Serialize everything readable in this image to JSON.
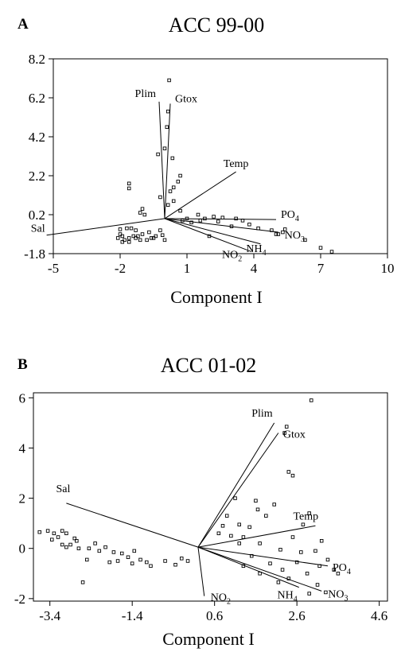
{
  "chart_data": [
    {
      "type": "scatter",
      "subtype": "biplot",
      "panel_label": "A",
      "title": "ACC 99-00",
      "xlabel": "Component I",
      "ylabel": "",
      "xlim": [
        -5,
        10
      ],
      "ylim": [
        -1.8,
        8.2
      ],
      "xticks": [
        "-5",
        "-2",
        "1",
        "4",
        "7",
        "10"
      ],
      "yticks": [
        "-1.8",
        "0.2",
        "2.2",
        "4.2",
        "6.2",
        "8.2"
      ],
      "origin": [
        0,
        0
      ],
      "vectors": [
        {
          "label": "Plim",
          "sub": "",
          "x": -0.25,
          "y": 6.0
        },
        {
          "label": "Gtox",
          "sub": "",
          "x": 0.25,
          "y": 5.9
        },
        {
          "label": "Temp",
          "sub": "",
          "x": 3.2,
          "y": 2.4
        },
        {
          "label": "PO",
          "sub": "4",
          "x": 5.0,
          "y": -0.05
        },
        {
          "label": "NO",
          "sub": "3",
          "x": 5.1,
          "y": -0.7
        },
        {
          "label": "NH",
          "sub": "4",
          "x": 4.3,
          "y": -1.3
        },
        {
          "label": "NO",
          "sub": "2",
          "x": 3.9,
          "y": -1.7
        },
        {
          "label": "Sal",
          "sub": "",
          "x": -5.3,
          "y": -0.85
        }
      ],
      "points": [
        [
          0.2,
          7.1
        ],
        [
          0.15,
          5.5
        ],
        [
          0.1,
          4.7
        ],
        [
          0.0,
          3.6
        ],
        [
          -0.3,
          3.3
        ],
        [
          0.35,
          3.1
        ],
        [
          0.7,
          2.2
        ],
        [
          0.6,
          1.9
        ],
        [
          0.4,
          1.6
        ],
        [
          0.25,
          1.4
        ],
        [
          -0.2,
          1.1
        ],
        [
          0.4,
          0.9
        ],
        [
          0.15,
          0.7
        ],
        [
          -1.6,
          1.8
        ],
        [
          -1.6,
          1.55
        ],
        [
          -1.0,
          0.5
        ],
        [
          -1.1,
          0.3
        ],
        [
          -0.9,
          0.2
        ],
        [
          0.7,
          0.4
        ],
        [
          1.5,
          0.2
        ],
        [
          2.2,
          0.1
        ],
        [
          2.6,
          0.05
        ],
        [
          3.2,
          0.0
        ],
        [
          3.5,
          -0.1
        ],
        [
          3.0,
          -0.4
        ],
        [
          3.8,
          -0.3
        ],
        [
          4.2,
          -0.5
        ],
        [
          4.8,
          -0.6
        ],
        [
          5.0,
          -0.8
        ],
        [
          5.3,
          -0.7
        ],
        [
          5.4,
          -0.55
        ],
        [
          5.1,
          -0.8
        ],
        [
          6.3,
          -1.1
        ],
        [
          7.0,
          -1.5
        ],
        [
          7.5,
          -1.7
        ],
        [
          2.0,
          -0.9
        ],
        [
          1.2,
          -0.2
        ],
        [
          1.0,
          0.0
        ],
        [
          0.8,
          -0.1
        ],
        [
          -0.2,
          -0.6
        ],
        [
          -0.6,
          -1.0
        ],
        [
          -0.8,
          -1.1
        ],
        [
          -1.0,
          -0.8
        ],
        [
          -1.4,
          -0.9
        ],
        [
          -1.8,
          -1.1
        ],
        [
          -2.0,
          -0.8
        ],
        [
          -2.1,
          -1.0
        ],
        [
          -1.9,
          -0.9
        ],
        [
          -1.6,
          -1.0
        ],
        [
          -1.3,
          -1.0
        ],
        [
          -1.2,
          -0.9
        ],
        [
          -1.1,
          -1.1
        ],
        [
          -0.5,
          -1.0
        ],
        [
          -0.4,
          -0.9
        ],
        [
          -0.1,
          -0.85
        ],
        [
          0.0,
          -1.1
        ],
        [
          -1.7,
          -0.5
        ],
        [
          -1.5,
          -0.5
        ],
        [
          -1.3,
          -0.6
        ],
        [
          -2.0,
          -0.55
        ],
        [
          -0.7,
          -0.7
        ],
        [
          1.6,
          -0.1
        ],
        [
          2.4,
          -0.15
        ],
        [
          1.8,
          0.0
        ],
        [
          -1.9,
          -1.2
        ],
        [
          -1.6,
          -1.2
        ]
      ]
    },
    {
      "type": "scatter",
      "subtype": "biplot",
      "panel_label": "B",
      "title": "ACC 01-02",
      "xlabel": "Component I",
      "ylabel": "",
      "xlim": [
        -3.8,
        4.8
      ],
      "ylim": [
        -2.1,
        6.2
      ],
      "xticks": [
        "-3.4",
        "-1.4",
        "0.6",
        "2.6",
        "4.6"
      ],
      "yticks": [
        "-2",
        "0",
        "2",
        "4",
        "6"
      ],
      "origin": [
        0.2,
        0.05
      ],
      "vectors": [
        {
          "label": "Plim",
          "sub": "",
          "x": 2.05,
          "y": 5.0
        },
        {
          "label": "Gtox",
          "sub": "",
          "x": 2.15,
          "y": 4.6
        },
        {
          "label": "Temp",
          "sub": "",
          "x": 3.05,
          "y": 0.9
        },
        {
          "label": "PO",
          "sub": "4",
          "x": 3.35,
          "y": -0.7
        },
        {
          "label": "NO",
          "sub": "3",
          "x": 3.2,
          "y": -1.7
        },
        {
          "label": "NH",
          "sub": "4",
          "x": 2.65,
          "y": -1.55
        },
        {
          "label": "NO",
          "sub": "2",
          "x": 0.35,
          "y": -1.9
        },
        {
          "label": "Sal",
          "sub": "",
          "x": -3.0,
          "y": 1.8
        }
      ],
      "points": [
        [
          2.95,
          5.9
        ],
        [
          2.35,
          4.85
        ],
        [
          2.3,
          4.6
        ],
        [
          2.4,
          3.05
        ],
        [
          2.5,
          2.9
        ],
        [
          1.1,
          2.0
        ],
        [
          1.6,
          1.9
        ],
        [
          1.65,
          1.55
        ],
        [
          2.05,
          1.75
        ],
        [
          0.9,
          1.3
        ],
        [
          2.9,
          1.4
        ],
        [
          2.75,
          0.95
        ],
        [
          0.8,
          0.9
        ],
        [
          1.2,
          0.95
        ],
        [
          1.45,
          0.85
        ],
        [
          1.85,
          1.3
        ],
        [
          0.7,
          0.6
        ],
        [
          1.0,
          0.5
        ],
        [
          1.3,
          0.45
        ],
        [
          2.5,
          0.45
        ],
        [
          3.2,
          0.3
        ],
        [
          1.2,
          0.2
        ],
        [
          1.7,
          0.2
        ],
        [
          2.2,
          -0.05
        ],
        [
          2.7,
          -0.15
        ],
        [
          3.05,
          -0.1
        ],
        [
          3.35,
          -0.45
        ],
        [
          3.15,
          -0.7
        ],
        [
          3.5,
          -0.85
        ],
        [
          2.6,
          -0.55
        ],
        [
          1.5,
          -0.3
        ],
        [
          1.95,
          -0.6
        ],
        [
          2.25,
          -0.85
        ],
        [
          2.85,
          -1.0
        ],
        [
          2.4,
          -1.2
        ],
        [
          2.15,
          -1.35
        ],
        [
          3.1,
          -1.45
        ],
        [
          3.3,
          -1.75
        ],
        [
          2.9,
          -1.8
        ],
        [
          3.6,
          -1.0
        ],
        [
          1.3,
          -0.7
        ],
        [
          1.7,
          -1.0
        ],
        [
          -3.65,
          0.65
        ],
        [
          -3.45,
          0.7
        ],
        [
          -3.3,
          0.6
        ],
        [
          -3.1,
          0.7
        ],
        [
          -3.0,
          0.6
        ],
        [
          -3.35,
          0.35
        ],
        [
          -3.2,
          0.45
        ],
        [
          -2.9,
          0.15
        ],
        [
          -2.75,
          0.3
        ],
        [
          -3.0,
          0.05
        ],
        [
          -2.7,
          0.0
        ],
        [
          -2.45,
          0.0
        ],
        [
          -2.2,
          -0.1
        ],
        [
          -2.05,
          0.05
        ],
        [
          -1.85,
          -0.15
        ],
        [
          -1.65,
          -0.2
        ],
        [
          -1.5,
          -0.35
        ],
        [
          -1.35,
          -0.1
        ],
        [
          -1.2,
          -0.45
        ],
        [
          -1.05,
          -0.55
        ],
        [
          -1.4,
          -0.6
        ],
        [
          -1.75,
          -0.5
        ],
        [
          -0.6,
          -0.5
        ],
        [
          -0.35,
          -0.65
        ],
        [
          -0.2,
          -0.4
        ],
        [
          -0.05,
          -0.5
        ],
        [
          -2.6,
          -1.35
        ],
        [
          -2.8,
          0.4
        ],
        [
          -3.1,
          0.15
        ],
        [
          -2.5,
          -0.45
        ],
        [
          -2.3,
          0.2
        ],
        [
          -1.95,
          -0.55
        ],
        [
          -0.95,
          -0.7
        ]
      ]
    }
  ]
}
